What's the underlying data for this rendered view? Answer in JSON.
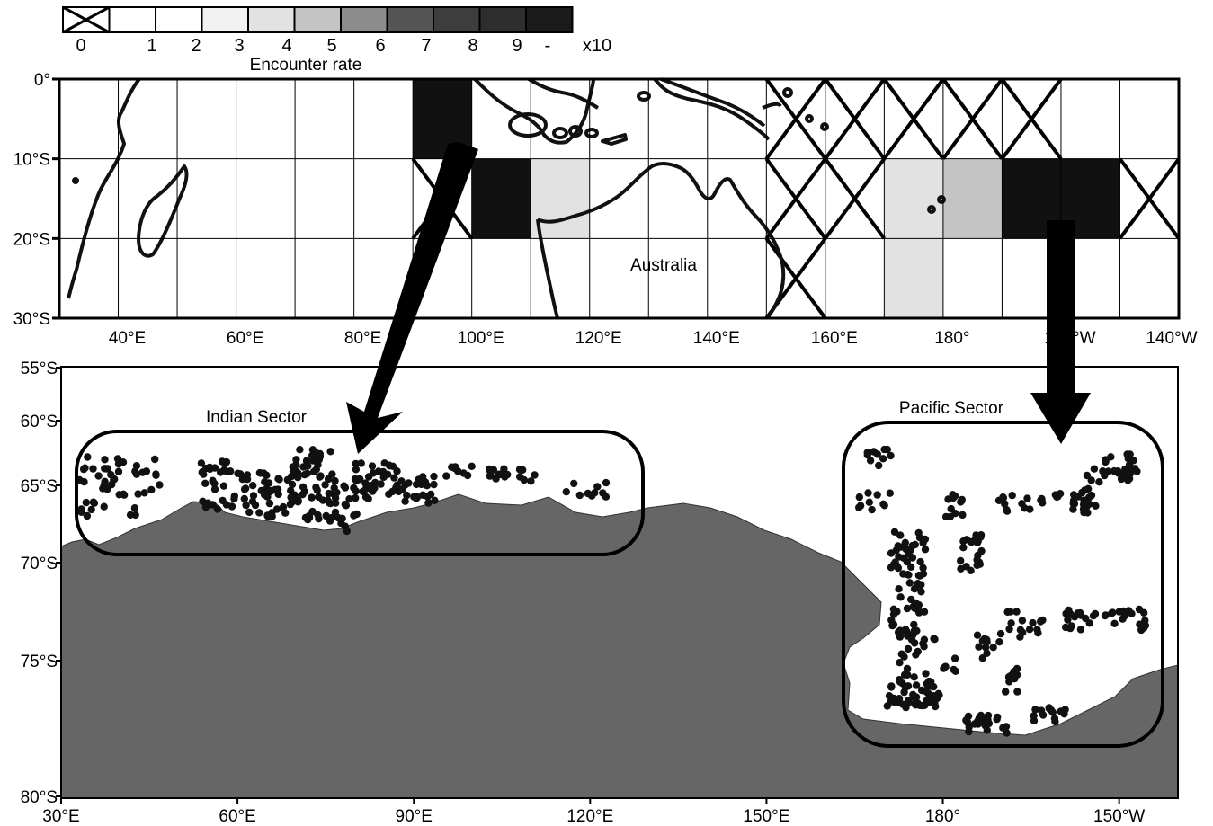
{
  "legend": {
    "title": "Encounter rate",
    "labels": [
      "0",
      "1",
      "2",
      "3",
      "4",
      "5",
      "6",
      "7",
      "8",
      "9",
      "-"
    ],
    "multiplier": "x10",
    "swatches": [
      "crossed",
      "#ffffff",
      "#ffffff",
      "#f2f2f2",
      "#e2e2e2",
      "#c4c4c4",
      "#8c8c8c",
      "#555555",
      "#3d3d3d",
      "#2e2e2e",
      "#1a1a1a"
    ]
  },
  "top_map": {
    "region_label": "Australia",
    "y_ticks": [
      "0°",
      "10°S",
      "20°S",
      "30°S"
    ],
    "x_ticks": [
      "40°E",
      "60°E",
      "80°E",
      "100°E",
      "120°E",
      "140°E",
      "160°E",
      "180°",
      "120°W",
      "140°W"
    ],
    "lon_range_deg_east": [
      30,
      220
    ],
    "lat_range_deg": [
      0,
      -30
    ],
    "cell_size_deg": 10,
    "cells": [
      {
        "lon": 90,
        "lat": 0,
        "fill": "#111111"
      },
      {
        "lon": 100,
        "lat": -10,
        "fill": "#111111"
      },
      {
        "lon": 110,
        "lat": -10,
        "fill": "#e2e2e2"
      },
      {
        "lon": 170,
        "lat": -10,
        "fill": "#e2e2e2"
      },
      {
        "lon": 180,
        "lat": -10,
        "fill": "#c4c4c4"
      },
      {
        "lon": 190,
        "lat": -10,
        "fill": "#111111"
      },
      {
        "lon": 200,
        "lat": -10,
        "fill": "#111111"
      },
      {
        "lon": 170,
        "lat": -20,
        "fill": "#e2e2e2"
      }
    ],
    "crossed_cells": [
      {
        "lon": 90,
        "lat": -10
      },
      {
        "lon": 150,
        "lat": 0
      },
      {
        "lon": 160,
        "lat": 0
      },
      {
        "lon": 170,
        "lat": 0
      },
      {
        "lon": 180,
        "lat": 0
      },
      {
        "lon": 190,
        "lat": 0
      },
      {
        "lon": 150,
        "lat": -10
      },
      {
        "lon": 160,
        "lat": -10
      },
      {
        "lon": 210,
        "lat": -10
      },
      {
        "lon": 150,
        "lat": -20
      }
    ]
  },
  "bottom_map": {
    "y_ticks": [
      "55°S",
      "60°S",
      "65°S",
      "70°S",
      "75°S",
      "80°S"
    ],
    "x_ticks": [
      "30°E",
      "60°E",
      "90°E",
      "120°E",
      "150°E",
      "180°",
      "150°W"
    ],
    "lon_range_deg_east": [
      30,
      220
    ],
    "lat_range_deg": [
      -55,
      -80
    ],
    "land_color": "#666666",
    "sectors": [
      {
        "name": "Indian Sector"
      },
      {
        "name": "Pacific Sector"
      }
    ]
  }
}
